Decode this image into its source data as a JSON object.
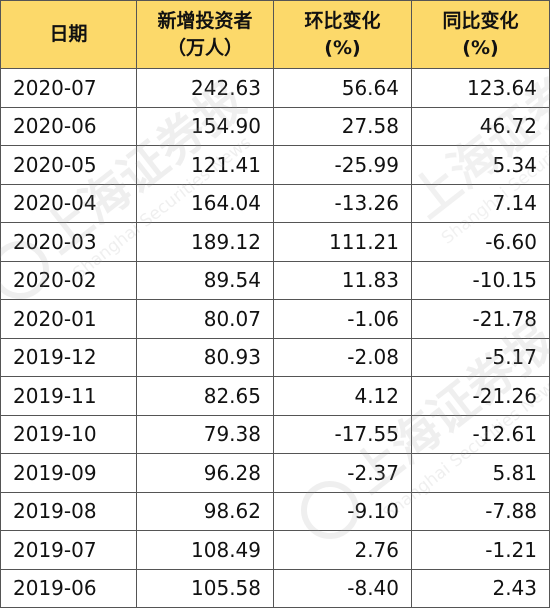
{
  "table": {
    "headers": [
      {
        "line1": "日期",
        "line2": ""
      },
      {
        "line1": "新增投资者",
        "line2": "（万人）"
      },
      {
        "line1": "环比变化",
        "line2": "(%)"
      },
      {
        "line1": "同比变化",
        "line2": "(%)"
      }
    ],
    "rows": [
      {
        "date": "2020-07",
        "new": "242.63",
        "mom": "56.64",
        "yoy": "123.64"
      },
      {
        "date": "2020-06",
        "new": "154.90",
        "mom": "27.58",
        "yoy": "46.72"
      },
      {
        "date": "2020-05",
        "new": "121.41",
        "mom": "-25.99",
        "yoy": "5.34"
      },
      {
        "date": "2020-04",
        "new": "164.04",
        "mom": "-13.26",
        "yoy": "7.14"
      },
      {
        "date": "2020-03",
        "new": "189.12",
        "mom": "111.21",
        "yoy": "-6.60"
      },
      {
        "date": "2020-02",
        "new": "89.54",
        "mom": "11.83",
        "yoy": "-10.15"
      },
      {
        "date": "2020-01",
        "new": "80.07",
        "mom": "-1.06",
        "yoy": "-21.78"
      },
      {
        "date": "2019-12",
        "new": "80.93",
        "mom": "-2.08",
        "yoy": "-5.17"
      },
      {
        "date": "2019-11",
        "new": "82.65",
        "mom": "4.12",
        "yoy": "-21.26"
      },
      {
        "date": "2019-10",
        "new": "79.38",
        "mom": "-17.55",
        "yoy": "-12.61"
      },
      {
        "date": "2019-09",
        "new": "96.28",
        "mom": "-2.37",
        "yoy": "5.81"
      },
      {
        "date": "2019-08",
        "new": "98.62",
        "mom": "-9.10",
        "yoy": "-7.88"
      },
      {
        "date": "2019-07",
        "new": "108.49",
        "mom": "2.76",
        "yoy": "-1.21"
      },
      {
        "date": "2019-06",
        "new": "105.58",
        "mom": "-8.40",
        "yoy": "2.43"
      }
    ]
  },
  "colors": {
    "header_bg": "#fcd96a",
    "border": "#555555",
    "text": "#111111",
    "watermark": "#9a9a9a"
  },
  "watermark": {
    "logo": "上海证券报",
    "text": "Shanghai Securities News"
  }
}
